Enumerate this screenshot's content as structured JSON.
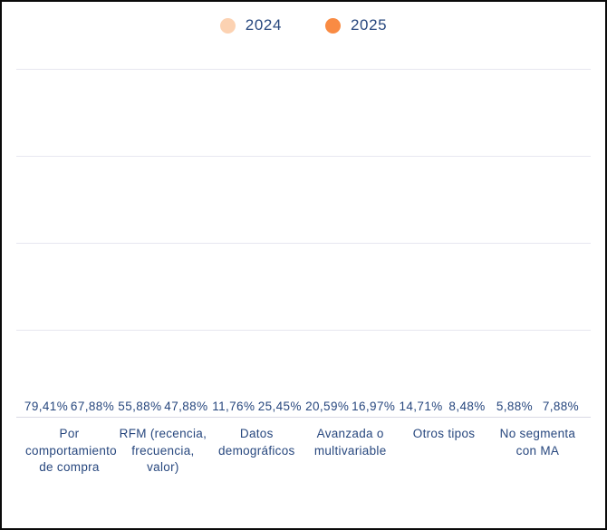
{
  "legend": {
    "items": [
      {
        "label": "2024"
      },
      {
        "label": "2025"
      }
    ]
  },
  "chart_data": {
    "type": "bar",
    "title": "",
    "xlabel": "",
    "ylabel": "",
    "categories": [
      "Por comportamiento de compra",
      "RFM (recencia, frecuencia, valor)",
      "Datos demográficos",
      "Avanzada o multivariable",
      "Otros tipos",
      "No segmenta con MA"
    ],
    "series": [
      {
        "name": "2024",
        "color": "#fcd2b2",
        "values": [
          79.41,
          55.88,
          11.76,
          20.59,
          14.71,
          5.88
        ],
        "value_labels": [
          "79,41%",
          "55,88%",
          "11,76%",
          "20,59%",
          "14,71%",
          "5,88%"
        ]
      },
      {
        "name": "2025",
        "color": "#f98b43",
        "values": [
          67.88,
          47.88,
          25.45,
          16.97,
          8.48,
          7.88
        ],
        "value_labels": [
          "67,88%",
          "47,88%",
          "25,45%",
          "16,97%",
          "8,48%",
          "7,88%"
        ]
      }
    ],
    "ylim": [
      0,
      80
    ],
    "gridline_values": [
      0,
      20,
      40,
      60,
      80
    ],
    "grid": true,
    "legend_position": "top",
    "value_suffix": "%",
    "decimal_separator": ","
  },
  "colors": {
    "label_text": "#27477e",
    "gridline": "#e7e7f0",
    "background": "#ffffff",
    "frame_border": "#0a0a0a"
  }
}
